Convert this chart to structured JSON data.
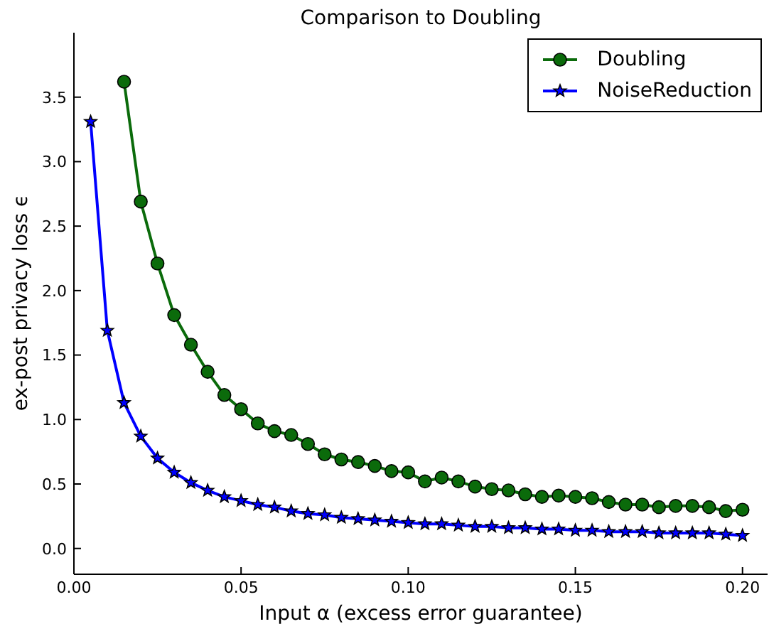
{
  "chart_data": {
    "type": "line",
    "title": "Comparison to Doubling",
    "xlabel": "Input α (excess error guarantee)",
    "ylabel": "ex-post privacy loss ϵ",
    "xlim": [
      0,
      0.2075
    ],
    "ylim": [
      -0.2,
      4.0
    ],
    "xticks": [
      {
        "value": 0,
        "label": "0.00"
      },
      {
        "value": 0.05,
        "label": "0.05"
      },
      {
        "value": 0.1,
        "label": "0.10"
      },
      {
        "value": 0.15,
        "label": "0.15"
      },
      {
        "value": 0.2,
        "label": "0.20"
      }
    ],
    "yticks": [
      {
        "value": 0,
        "label": "0.0"
      },
      {
        "value": 0.5,
        "label": "0.5"
      },
      {
        "value": 1,
        "label": "1.0"
      },
      {
        "value": 1.5,
        "label": "1.5"
      },
      {
        "value": 2,
        "label": "2.0"
      },
      {
        "value": 2.5,
        "label": "2.5"
      },
      {
        "value": 3,
        "label": "3.0"
      },
      {
        "value": 3.5,
        "label": "3.5"
      }
    ],
    "grid": false,
    "legend": "top right",
    "line_style": "solid",
    "series": [
      {
        "name": "Doubling",
        "color": "#0b6b0b",
        "marker": "circle",
        "x": [
          0.015,
          0.02,
          0.025,
          0.03,
          0.035,
          0.04,
          0.045,
          0.05,
          0.055,
          0.06,
          0.065,
          0.07,
          0.075,
          0.08,
          0.085,
          0.09,
          0.095,
          0.1,
          0.105,
          0.11,
          0.115,
          0.12,
          0.125,
          0.13,
          0.135,
          0.14,
          0.145,
          0.15,
          0.155,
          0.16,
          0.165,
          0.17,
          0.175,
          0.18,
          0.185,
          0.19,
          0.195,
          0.2
        ],
        "values": [
          3.62,
          2.69,
          2.21,
          1.81,
          1.58,
          1.37,
          1.19,
          1.08,
          0.97,
          0.91,
          0.88,
          0.81,
          0.73,
          0.69,
          0.67,
          0.64,
          0.6,
          0.59,
          0.52,
          0.55,
          0.52,
          0.48,
          0.46,
          0.45,
          0.42,
          0.4,
          0.41,
          0.4,
          0.39,
          0.36,
          0.34,
          0.34,
          0.32,
          0.33,
          0.33,
          0.32,
          0.29,
          0.3
        ]
      },
      {
        "name": "NoiseReduction",
        "color": "#0000ff",
        "marker": "star",
        "x": [
          0.005,
          0.01,
          0.015,
          0.02,
          0.025,
          0.03,
          0.035,
          0.04,
          0.045,
          0.05,
          0.055,
          0.06,
          0.065,
          0.07,
          0.075,
          0.08,
          0.085,
          0.09,
          0.095,
          0.1,
          0.105,
          0.11,
          0.115,
          0.12,
          0.125,
          0.13,
          0.135,
          0.14,
          0.145,
          0.15,
          0.155,
          0.16,
          0.165,
          0.17,
          0.175,
          0.18,
          0.185,
          0.19,
          0.195,
          0.2
        ],
        "values": [
          3.31,
          1.69,
          1.13,
          0.87,
          0.7,
          0.59,
          0.51,
          0.45,
          0.4,
          0.37,
          0.34,
          0.32,
          0.29,
          0.27,
          0.26,
          0.24,
          0.23,
          0.22,
          0.21,
          0.2,
          0.19,
          0.19,
          0.18,
          0.17,
          0.17,
          0.16,
          0.16,
          0.15,
          0.15,
          0.14,
          0.14,
          0.13,
          0.13,
          0.13,
          0.12,
          0.12,
          0.12,
          0.12,
          0.11,
          0.1
        ]
      }
    ]
  }
}
